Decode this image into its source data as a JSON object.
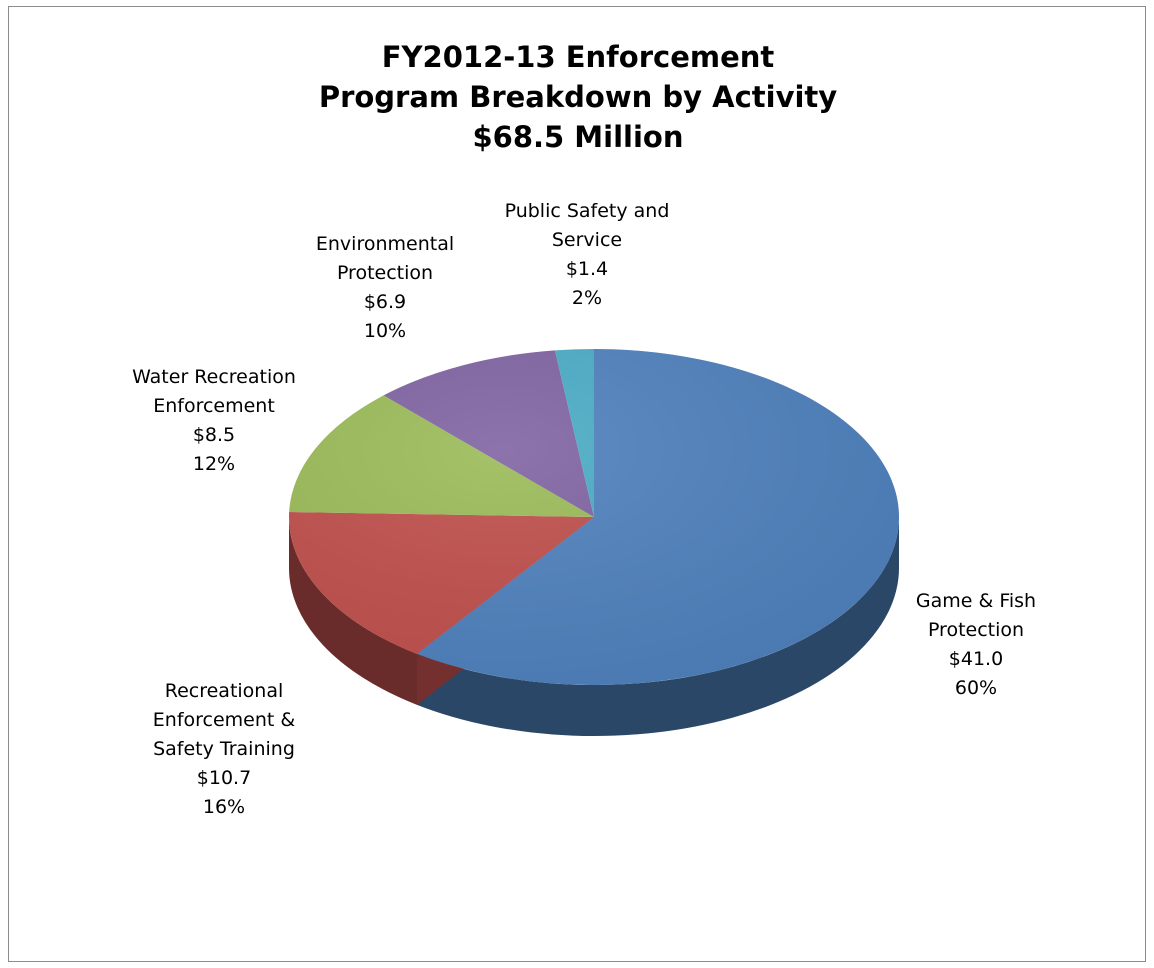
{
  "chart_data": {
    "type": "pie",
    "title_lines": [
      "FY2012-13 Enforcement",
      "Program Breakdown by Activity",
      "$68.5 Million"
    ],
    "slices": [
      {
        "name": "Game & Fish Protection",
        "name_lines": [
          "Game & Fish",
          "Protection"
        ],
        "value": 41.0,
        "value_label": "$41.0",
        "percent": 60,
        "percent_label": "60%",
        "color": "#4F81BD"
      },
      {
        "name": "Recreational Enforcement & Safety Training",
        "name_lines": [
          "Recreational",
          "Enforcement &",
          "Safety Training"
        ],
        "value": 10.7,
        "value_label": "$10.7",
        "percent": 16,
        "percent_label": "16%",
        "color": "#C0504D"
      },
      {
        "name": "Water Recreation Enforcement",
        "name_lines": [
          "Water Recreation",
          "Enforcement"
        ],
        "value": 8.5,
        "value_label": "$8.5",
        "percent": 12,
        "percent_label": "12%",
        "color": "#9BBB59"
      },
      {
        "name": "Environmental Protection",
        "name_lines": [
          "Environmental",
          "Protection"
        ],
        "value": 6.9,
        "value_label": "$6.9",
        "percent": 10,
        "percent_label": "10%",
        "color": "#8064A2"
      },
      {
        "name": "Public Safety and Service",
        "name_lines": [
          "Public Safety and",
          "Service"
        ],
        "value": 1.4,
        "value_label": "$1.4",
        "percent": 2,
        "percent_label": "2%",
        "color": "#4BACC6"
      }
    ],
    "legend": "none",
    "style": "3d"
  }
}
